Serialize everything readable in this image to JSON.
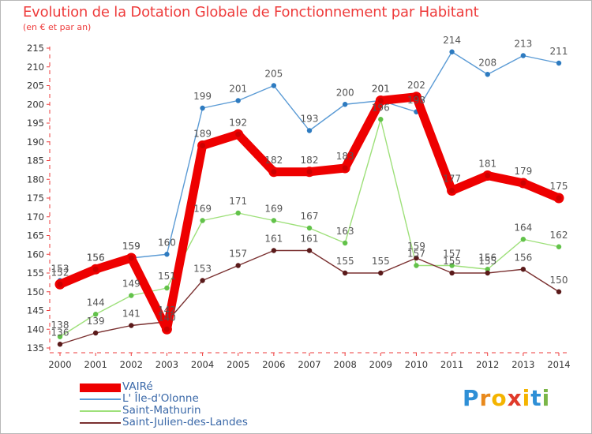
{
  "title": "Evolution de la Dotation Globale de Fonctionnement par Habitant",
  "subtitle": "(en € et par an)",
  "logo": {
    "text": "Proxiti",
    "letters": [
      "P",
      "r",
      "o",
      "x",
      "i",
      "t",
      "i"
    ],
    "colors": [
      "#2e8fd6",
      "#e8891c",
      "#f4b400",
      "#e03a2a",
      "#f4b400",
      "#2e8fd6",
      "#7ab648"
    ]
  },
  "chart_data": {
    "type": "line",
    "x": [
      "2000",
      "2001",
      "2002",
      "2003",
      "2004",
      "2005",
      "2006",
      "2007",
      "2008",
      "2009",
      "2010",
      "2011",
      "2012",
      "2013",
      "2014"
    ],
    "ylim": [
      135,
      215
    ],
    "y_ticks": [
      135,
      140,
      145,
      150,
      155,
      160,
      165,
      170,
      175,
      180,
      185,
      190,
      195,
      200,
      205,
      210,
      215
    ],
    "grid": false,
    "legend_position": "bottom-left",
    "series": [
      {
        "name": "L' Île-d'Olonne",
        "color": "#5b9bd5",
        "marker": "#2e7bc0",
        "label_color": "#555555",
        "values": [
          153,
          156,
          159,
          160,
          199,
          201,
          205,
          193,
          200,
          201,
          198,
          214,
          208,
          213,
          211
        ],
        "labels": [
          "153",
          "156",
          "159",
          "160",
          "199",
          "201",
          "205",
          "193",
          "200",
          "201",
          "198",
          "214",
          "208",
          "213",
          "211"
        ]
      },
      {
        "name": "Saint-Mathurin",
        "color": "#9ee07a",
        "marker": "#62c24a",
        "label_color": "#555555",
        "values": [
          138,
          144,
          149,
          151,
          169,
          171,
          169,
          167,
          163,
          196,
          157,
          157,
          156,
          164,
          162
        ],
        "labels": [
          "138",
          "144",
          "149",
          "151",
          "169",
          "171",
          "169",
          "167",
          "163",
          "196",
          "157",
          "157",
          "156",
          "164",
          "162"
        ]
      },
      {
        "name": "Saint-Julien-des-Landes",
        "color": "#7a3030",
        "marker": "#5a1a1a",
        "label_color": "#555555",
        "values": [
          136,
          139,
          141,
          142,
          153,
          157,
          161,
          161,
          155,
          155,
          159,
          155,
          155,
          156,
          150
        ],
        "labels": [
          "136",
          "139",
          "141",
          "142",
          "153",
          "157",
          "161",
          "161",
          "155",
          "155",
          "159",
          "155",
          "155",
          "156",
          "150"
        ]
      },
      {
        "name": "VAIRé",
        "color": "#ee0000",
        "marker": "#cc0000",
        "label_color": "#555555",
        "bold": true,
        "values": [
          152,
          156,
          159,
          140,
          189,
          192,
          182,
          182,
          183,
          201,
          202,
          177,
          181,
          179,
          175
        ],
        "labels": [
          "152",
          "156",
          "159",
          "140",
          "189",
          "192",
          "182",
          "182",
          "183",
          "201",
          "202",
          "177",
          "181",
          "179",
          "175"
        ]
      }
    ]
  },
  "legend": [
    {
      "label": "VAIRé",
      "color": "#ee0000",
      "thickness": 11
    },
    {
      "label": "L' Île-d'Olonne",
      "color": "#5b9bd5",
      "thickness": 2
    },
    {
      "label": "Saint-Mathurin",
      "color": "#9ee07a",
      "thickness": 2
    },
    {
      "label": "Saint-Julien-des-Landes",
      "color": "#7a3030",
      "thickness": 2
    }
  ]
}
